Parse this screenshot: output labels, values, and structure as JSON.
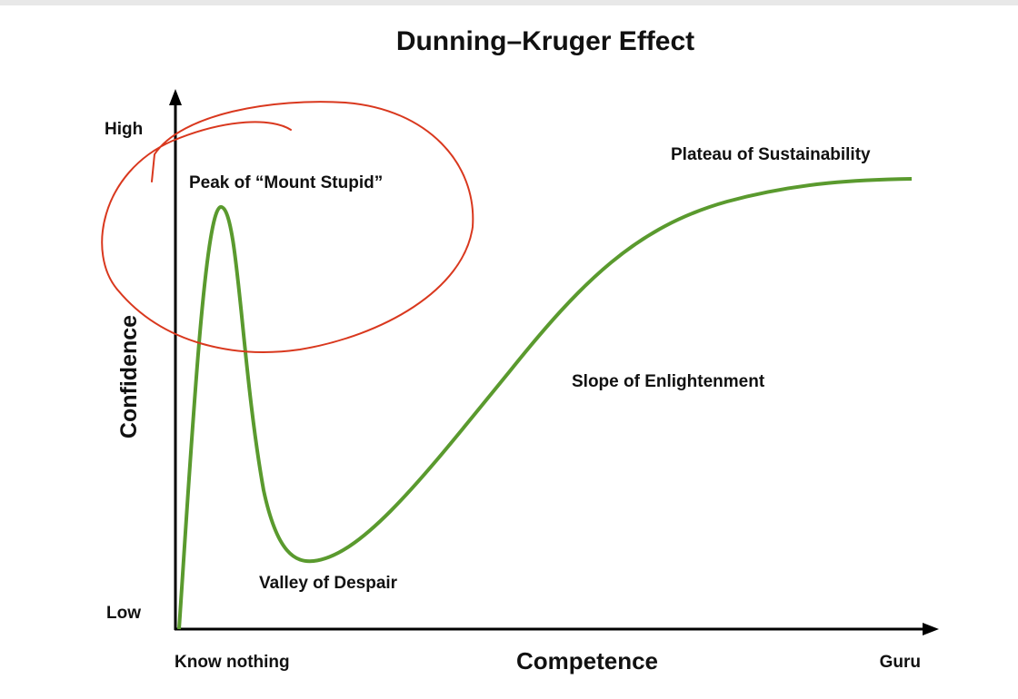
{
  "title": "Dunning–Kruger Effect",
  "y_axis": {
    "label": "Confidence",
    "high": "High",
    "low": "Low"
  },
  "x_axis": {
    "label": "Competence",
    "start": "Know nothing",
    "end": "Guru"
  },
  "annotations": [
    "Peak of “Mount Stupid”",
    "Valley of Despair",
    "Slope of Enlightenment",
    "Plateau of Sustainability"
  ]
}
